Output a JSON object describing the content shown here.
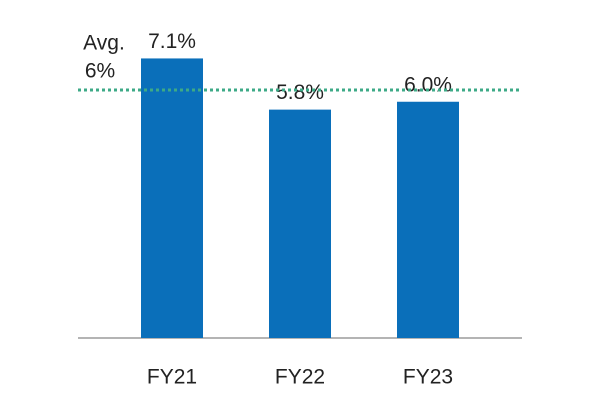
{
  "chart_data": {
    "type": "bar",
    "categories": [
      "FY21",
      "FY22",
      "FY23"
    ],
    "values": [
      7.1,
      5.8,
      6.0
    ],
    "value_labels": [
      "7.1%",
      "5.8%",
      "6.0%"
    ],
    "color": "#0a6fba",
    "ylim": [
      0,
      8
    ],
    "average": {
      "name": "Avg.",
      "value": 6.3,
      "label": "6%",
      "color": "#3daa87"
    }
  }
}
